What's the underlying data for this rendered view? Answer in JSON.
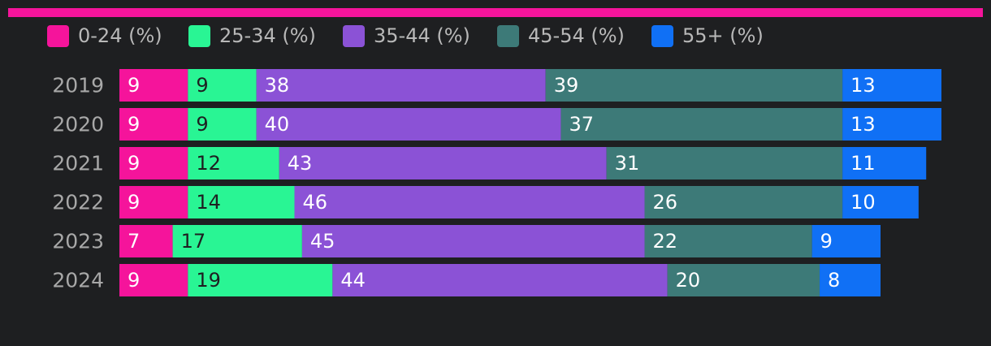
{
  "chart_data": {
    "type": "stacked-bar-horizontal",
    "categories": [
      "2019",
      "2020",
      "2021",
      "2022",
      "2023",
      "2024"
    ],
    "series": [
      {
        "name": "0-24 (%)",
        "color": "#f5149b",
        "label_color": "#ffffff",
        "values": [
          9,
          9,
          9,
          9,
          7,
          9
        ]
      },
      {
        "name": "25-34 (%)",
        "color": "#29f594",
        "label_color": "#1e1f21",
        "values": [
          9,
          9,
          12,
          14,
          17,
          19
        ]
      },
      {
        "name": "35-44 (%)",
        "color": "#8b52d6",
        "label_color": "#ffffff",
        "values": [
          38,
          40,
          43,
          46,
          45,
          44
        ]
      },
      {
        "name": "45-54 (%)",
        "color": "#3d7a78",
        "label_color": "#ffffff",
        "values": [
          39,
          37,
          31,
          26,
          22,
          20
        ]
      },
      {
        "name": "55+ (%)",
        "color": "#1070f5",
        "label_color": "#ffffff",
        "values": [
          13,
          13,
          11,
          10,
          9,
          8
        ]
      }
    ]
  }
}
